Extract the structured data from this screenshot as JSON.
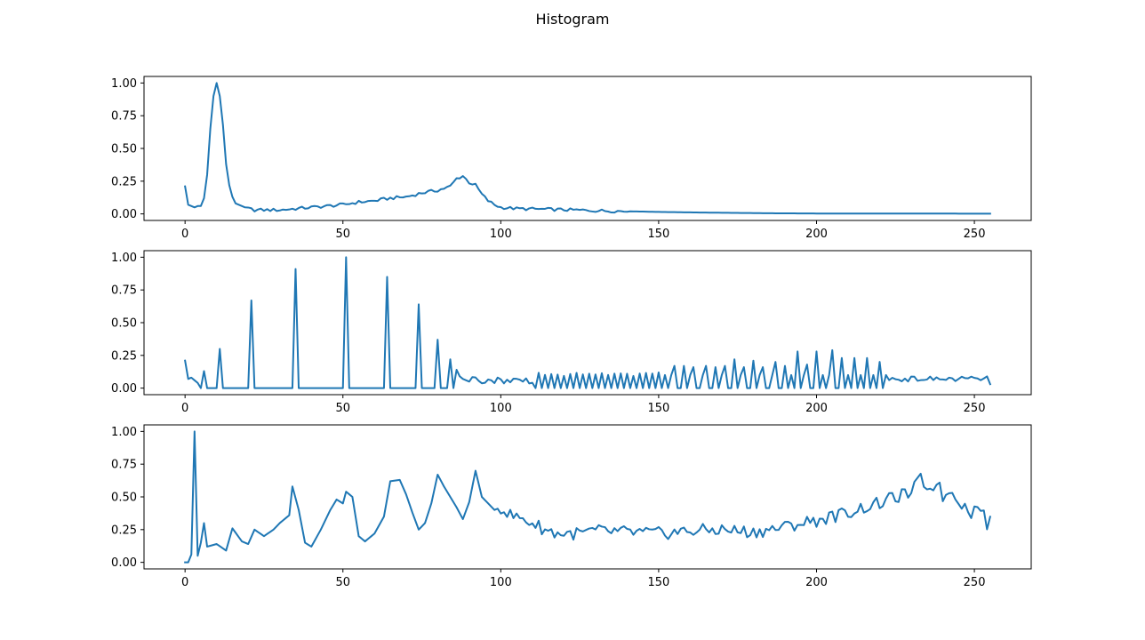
{
  "figure": {
    "title": "Histogram",
    "line_color": "#1f77b4",
    "background": "#ffffff"
  },
  "chart_data": [
    {
      "type": "line",
      "title": "",
      "xlabel": "",
      "ylabel": "",
      "xlim": [
        -13,
        268
      ],
      "ylim": [
        -0.05,
        1.05
      ],
      "xticks": [
        0,
        50,
        100,
        150,
        200,
        250
      ],
      "yticks": [
        0.0,
        0.25,
        0.5,
        0.75,
        1.0
      ],
      "xtick_labels": [
        "0",
        "50",
        "100",
        "150",
        "200",
        "250"
      ],
      "ytick_labels": [
        "0.00",
        "0.25",
        "0.50",
        "0.75",
        "1.00"
      ],
      "grid": false,
      "series": [
        {
          "keypoints": [
            [
              0,
              0.21
            ],
            [
              1,
              0.07
            ],
            [
              3,
              0.05
            ],
            [
              4,
              0.06
            ],
            [
              5,
              0.06
            ],
            [
              6,
              0.12
            ],
            [
              7,
              0.3
            ],
            [
              8,
              0.65
            ],
            [
              9,
              0.9
            ],
            [
              10,
              1.0
            ],
            [
              11,
              0.9
            ],
            [
              12,
              0.68
            ],
            [
              13,
              0.38
            ],
            [
              14,
              0.22
            ],
            [
              15,
              0.13
            ],
            [
              16,
              0.08
            ],
            [
              18,
              0.06
            ],
            [
              20,
              0.04
            ],
            [
              22,
              0.03
            ],
            [
              30,
              0.03
            ],
            [
              40,
              0.05
            ],
            [
              45,
              0.06
            ],
            [
              50,
              0.07
            ],
            [
              55,
              0.09
            ],
            [
              60,
              0.1
            ],
            [
              65,
              0.12
            ],
            [
              70,
              0.13
            ],
            [
              75,
              0.16
            ],
            [
              80,
              0.18
            ],
            [
              84,
              0.21
            ],
            [
              86,
              0.27
            ],
            [
              88,
              0.29
            ],
            [
              90,
              0.24
            ],
            [
              92,
              0.22
            ],
            [
              94,
              0.15
            ],
            [
              96,
              0.1
            ],
            [
              98,
              0.07
            ],
            [
              100,
              0.05
            ],
            [
              105,
              0.04
            ],
            [
              115,
              0.035
            ],
            [
              130,
              0.025
            ],
            [
              140,
              0.02
            ],
            [
              150,
              0.015
            ],
            [
              165,
              0.01
            ],
            [
              185,
              0.005
            ],
            [
              200,
              0.003
            ],
            [
              255,
              0.002
            ]
          ],
          "noise_amp": 0.012,
          "noise_from": 20,
          "noise_to": 140
        }
      ]
    },
    {
      "type": "line",
      "title": "",
      "xlabel": "",
      "ylabel": "",
      "xlim": [
        -13,
        268
      ],
      "ylim": [
        -0.05,
        1.05
      ],
      "xticks": [
        0,
        50,
        100,
        150,
        200,
        250
      ],
      "yticks": [
        0.0,
        0.25,
        0.5,
        0.75,
        1.0
      ],
      "xtick_labels": [
        "0",
        "50",
        "100",
        "150",
        "200",
        "250"
      ],
      "ytick_labels": [
        "0.00",
        "0.25",
        "0.50",
        "0.75",
        "1.00"
      ],
      "grid": false,
      "series": [
        {
          "head": [
            0.21,
            0.07,
            0.08,
            0.06,
            0.04,
            0.0,
            0.13,
            0.0,
            0.0,
            0.0,
            0.0,
            0.3,
            0.0,
            0.0,
            0.0,
            0.0,
            0.0,
            0.0,
            0.0,
            0.0,
            0.0,
            0.67,
            0.0,
            0.0,
            0.0,
            0.0,
            0.0,
            0.0,
            0.0,
            0.0,
            0.0,
            0.0,
            0.0,
            0.0,
            0.0,
            0.91,
            0.0,
            0.0,
            0.0,
            0.0,
            0.0,
            0.0,
            0.0,
            0.0,
            0.0,
            0.0,
            0.0,
            0.0,
            0.0,
            0.0,
            0.0,
            1.0,
            0.0,
            0.0,
            0.0,
            0.0,
            0.0,
            0.0,
            0.0,
            0.0,
            0.0,
            0.0,
            0.0,
            0.0,
            0.85,
            0.0,
            0.0,
            0.0,
            0.0,
            0.0,
            0.0,
            0.0,
            0.0,
            0.0,
            0.64,
            0.0,
            0.0,
            0.0,
            0.0,
            0.0,
            0.37,
            0.0,
            0.0,
            0.0,
            0.22,
            0.0,
            0.14,
            0.09,
            0.07,
            0.06,
            0.05
          ],
          "spikes": [
            [
              155,
              0.17
            ],
            [
              158,
              0.17
            ],
            [
              161,
              0.16
            ],
            [
              165,
              0.17
            ],
            [
              168,
              0.16
            ],
            [
              171,
              0.17
            ],
            [
              174,
              0.22
            ],
            [
              177,
              0.16
            ],
            [
              180,
              0.21
            ],
            [
              183,
              0.16
            ],
            [
              187,
              0.2
            ],
            [
              190,
              0.17
            ],
            [
              194,
              0.28
            ],
            [
              197,
              0.18
            ],
            [
              200,
              0.28
            ],
            [
              205,
              0.29
            ],
            [
              208,
              0.23
            ],
            [
              212,
              0.23
            ],
            [
              216,
              0.23
            ],
            [
              220,
              0.2
            ]
          ]
        }
      ]
    },
    {
      "type": "line",
      "title": "",
      "xlabel": "",
      "ylabel": "",
      "xlim": [
        -13,
        268
      ],
      "ylim": [
        -0.05,
        1.05
      ],
      "xticks": [
        0,
        50,
        100,
        150,
        200,
        250
      ],
      "yticks": [
        0.0,
        0.25,
        0.5,
        0.75,
        1.0
      ],
      "xtick_labels": [
        "0",
        "50",
        "100",
        "150",
        "200",
        "250"
      ],
      "ytick_labels": [
        "0.00",
        "0.25",
        "0.50",
        "0.75",
        "1.00"
      ],
      "grid": false,
      "series": [
        {
          "keypoints": [
            [
              0,
              0.0
            ],
            [
              1,
              0.0
            ],
            [
              2,
              0.06
            ],
            [
              3,
              1.0
            ],
            [
              4,
              0.05
            ],
            [
              5,
              0.15
            ],
            [
              6,
              0.3
            ],
            [
              7,
              0.12
            ],
            [
              10,
              0.14
            ],
            [
              13,
              0.09
            ],
            [
              15,
              0.26
            ],
            [
              18,
              0.16
            ],
            [
              20,
              0.14
            ],
            [
              22,
              0.25
            ],
            [
              25,
              0.2
            ],
            [
              28,
              0.25
            ],
            [
              30,
              0.3
            ],
            [
              33,
              0.36
            ],
            [
              34,
              0.58
            ],
            [
              36,
              0.4
            ],
            [
              38,
              0.15
            ],
            [
              40,
              0.12
            ],
            [
              43,
              0.25
            ],
            [
              46,
              0.4
            ],
            [
              48,
              0.48
            ],
            [
              50,
              0.45
            ],
            [
              51,
              0.54
            ],
            [
              53,
              0.5
            ],
            [
              55,
              0.2
            ],
            [
              57,
              0.16
            ],
            [
              60,
              0.22
            ],
            [
              63,
              0.35
            ],
            [
              65,
              0.62
            ],
            [
              68,
              0.63
            ],
            [
              70,
              0.52
            ],
            [
              72,
              0.38
            ],
            [
              74,
              0.25
            ],
            [
              76,
              0.3
            ],
            [
              78,
              0.45
            ],
            [
              80,
              0.67
            ],
            [
              82,
              0.58
            ],
            [
              84,
              0.5
            ],
            [
              86,
              0.42
            ],
            [
              88,
              0.33
            ],
            [
              90,
              0.46
            ],
            [
              92,
              0.7
            ],
            [
              94,
              0.5
            ],
            [
              96,
              0.45
            ],
            [
              98,
              0.4
            ],
            [
              100,
              0.42
            ],
            [
              103,
              0.36
            ],
            [
              106,
              0.34
            ],
            [
              110,
              0.3
            ],
            [
              114,
              0.25
            ],
            [
              118,
              0.22
            ],
            [
              125,
              0.22
            ],
            [
              130,
              0.24
            ],
            [
              140,
              0.23
            ],
            [
              150,
              0.22
            ],
            [
              160,
              0.24
            ],
            [
              170,
              0.25
            ],
            [
              180,
              0.23
            ],
            [
              190,
              0.27
            ],
            [
              195,
              0.3
            ],
            [
              200,
              0.32
            ],
            [
              205,
              0.35
            ],
            [
              210,
              0.38
            ],
            [
              215,
              0.42
            ],
            [
              220,
              0.45
            ],
            [
              225,
              0.5
            ],
            [
              230,
              0.53
            ],
            [
              233,
              0.64
            ],
            [
              236,
              0.55
            ],
            [
              238,
              0.63
            ],
            [
              240,
              0.5
            ],
            [
              243,
              0.55
            ],
            [
              246,
              0.45
            ],
            [
              249,
              0.38
            ],
            [
              252,
              0.44
            ],
            [
              254,
              0.28
            ],
            [
              255,
              0.3
            ]
          ],
          "noise_amp": 0.05,
          "noise_from": 100,
          "noise_to": 255
        }
      ]
    }
  ]
}
